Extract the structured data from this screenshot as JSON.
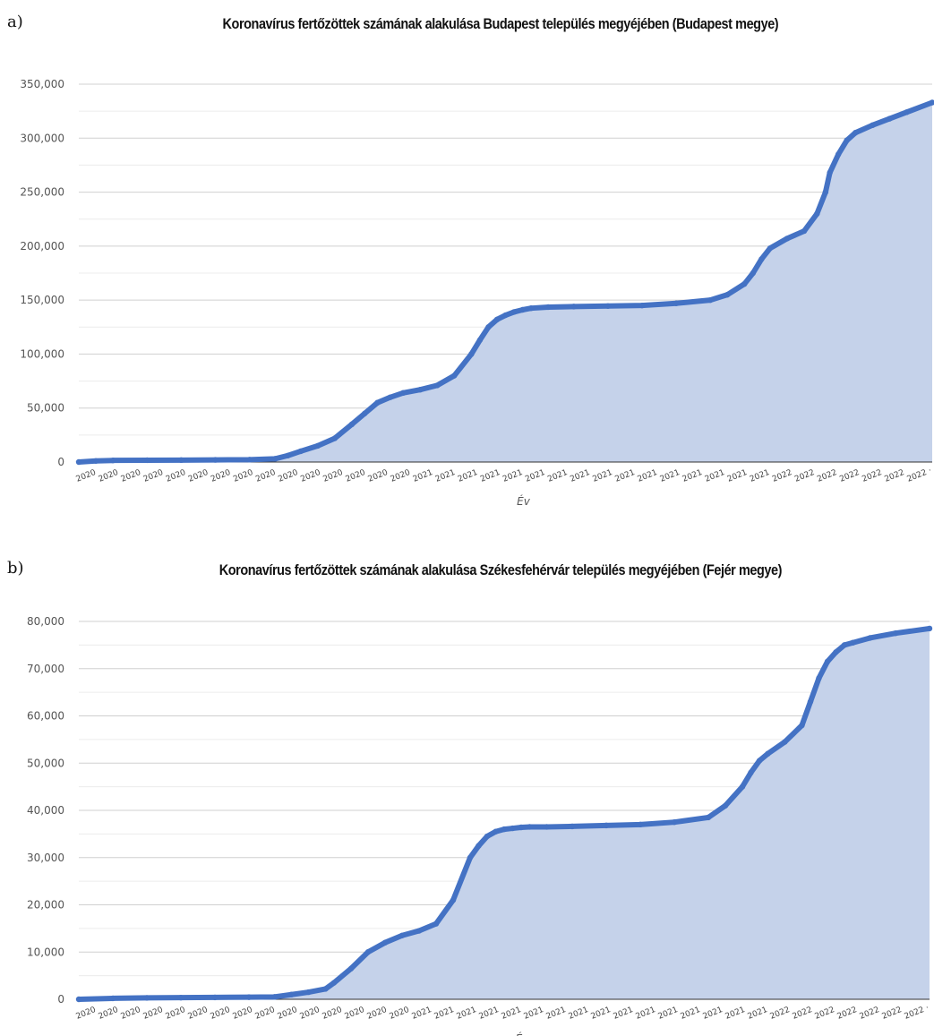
{
  "chart_data": [
    {
      "panel_label": "a)",
      "type": "area",
      "title": "Koronavírus fertőzöttek számának alakulása Budapest település megyéjében (Budapest megye)",
      "xlabel": "Év",
      "ylabel": "",
      "ylim": [
        0,
        350000
      ],
      "yticks": [
        0,
        50000,
        100000,
        150000,
        200000,
        250000,
        300000,
        350000
      ],
      "ytick_labels": [
        "0",
        "50,000",
        "100,000",
        "150,000",
        "200,000",
        "250,000",
        "300,000",
        "350,000"
      ],
      "minor_gridlines": true,
      "x_tick_labels": [
        "2020",
        "2020",
        "2020",
        "2020",
        "2020",
        "2020",
        "2020",
        "2020",
        "2020",
        "2020",
        "2020",
        "2020",
        "2020",
        "2020",
        "2020",
        "2021",
        "2021",
        "2021",
        "2021",
        "2021",
        "2021",
        "2021",
        "2021",
        "2021",
        "2021",
        "2021",
        "2021",
        "2021",
        "2021",
        "2021",
        "2021",
        "2022",
        "2022",
        "2022",
        "2022",
        "2022",
        "2022",
        "2022 ·"
      ],
      "color": "#4472c4",
      "fill_color": "#c5d2ea",
      "series": [
        {
          "x": [
            0,
            0.02,
            0.04,
            0.08,
            0.12,
            0.16,
            0.2,
            0.23,
            0.245,
            0.26,
            0.28,
            0.3,
            0.32,
            0.335,
            0.35,
            0.365,
            0.38,
            0.4,
            0.42,
            0.44,
            0.46,
            0.47,
            0.48,
            0.49,
            0.5,
            0.51,
            0.52,
            0.53,
            0.55,
            0.58,
            0.62,
            0.66,
            0.7,
            0.74,
            0.76,
            0.78,
            0.79,
            0.8,
            0.81,
            0.83,
            0.85,
            0.865,
            0.875,
            0.88,
            0.89,
            0.9,
            0.91,
            0.93,
            0.95,
            0.97,
            1.0
          ],
          "values": [
            0,
            1000,
            1500,
            1700,
            1800,
            2000,
            2200,
            3000,
            6000,
            10000,
            15000,
            22000,
            35000,
            45000,
            55000,
            60000,
            64000,
            67000,
            71000,
            80000,
            100000,
            113000,
            125000,
            132000,
            136000,
            139000,
            141000,
            142500,
            143500,
            144000,
            144500,
            145000,
            147000,
            150000,
            155000,
            165000,
            175000,
            188000,
            198000,
            207000,
            214000,
            230000,
            250000,
            268000,
            285000,
            298000,
            305000,
            312000,
            318000,
            324000,
            333000
          ]
        }
      ]
    },
    {
      "panel_label": "b)",
      "type": "area",
      "title": "Koronavírus fertőzöttek számának alakulása Székesfehérvár település megyéjében (Fejér megye)",
      "xlabel": "Év",
      "ylabel": "",
      "ylim": [
        0,
        80000
      ],
      "yticks": [
        0,
        10000,
        20000,
        30000,
        40000,
        50000,
        60000,
        70000,
        80000
      ],
      "ytick_labels": [
        "0",
        "10,000",
        "20,000",
        "30,000",
        "40,000",
        "50,000",
        "60,000",
        "70,000",
        "80,000"
      ],
      "minor_gridlines": true,
      "x_tick_labels": [
        "2020",
        "2020",
        "2020",
        "2020",
        "2020",
        "2020",
        "2020",
        "2020",
        "2020",
        "2020",
        "2020",
        "2020",
        "2020",
        "2020",
        "2020",
        "2021",
        "2021",
        "2021",
        "2021",
        "2021",
        "2021",
        "2021",
        "2021",
        "2021",
        "2021",
        "2021",
        "2021",
        "2021",
        "2021",
        "2021",
        "2021",
        "2022",
        "2022",
        "2022",
        "2022",
        "2022",
        "2022",
        "2022 ·"
      ],
      "color": "#4472c4",
      "fill_color": "#c5d2ea",
      "series": [
        {
          "x": [
            0,
            0.04,
            0.08,
            0.12,
            0.16,
            0.2,
            0.23,
            0.25,
            0.27,
            0.29,
            0.3,
            0.32,
            0.34,
            0.36,
            0.38,
            0.4,
            0.42,
            0.44,
            0.46,
            0.47,
            0.48,
            0.49,
            0.5,
            0.51,
            0.52,
            0.53,
            0.55,
            0.58,
            0.62,
            0.66,
            0.7,
            0.74,
            0.76,
            0.78,
            0.79,
            0.8,
            0.81,
            0.83,
            0.85,
            0.86,
            0.87,
            0.88,
            0.89,
            0.9,
            0.91,
            0.93,
            0.96,
            1.0
          ],
          "values": [
            0,
            200,
            300,
            350,
            400,
            450,
            500,
            1000,
            1500,
            2200,
            3500,
            6500,
            10000,
            12000,
            13500,
            14500,
            16000,
            21000,
            30000,
            32500,
            34500,
            35500,
            36000,
            36200,
            36400,
            36500,
            36500,
            36600,
            36800,
            37000,
            37500,
            38500,
            41000,
            45000,
            48000,
            50500,
            52000,
            54500,
            58000,
            63000,
            68000,
            71500,
            73500,
            75000,
            75500,
            76500,
            77500,
            78500
          ]
        }
      ]
    }
  ]
}
